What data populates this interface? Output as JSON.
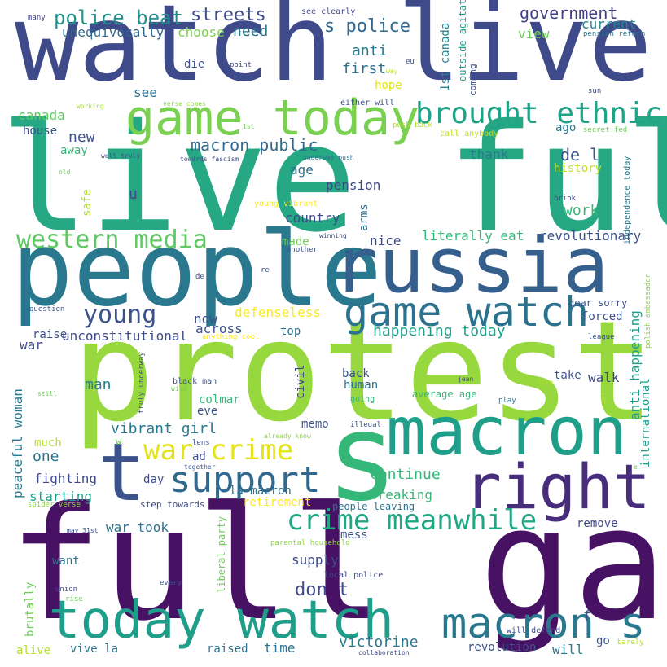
{
  "palette": {
    "dark_purple": "#471164",
    "indigo": "#3e4a89",
    "blue": "#31688e",
    "teal": "#26828e",
    "green_teal": "#1f9e89",
    "green": "#35b779",
    "light_green": "#6ece58",
    "lime": "#b5de2b",
    "yellow": "#fde725"
  },
  "words": [
    {
      "text": "watch live",
      "color": "#3e4a89"
    },
    {
      "text": "live full",
      "color": "#26a884"
    },
    {
      "text": "protest",
      "color": "#97d83f"
    },
    {
      "text": "full game",
      "color": "#471164"
    },
    {
      "text": "people",
      "color": "#2a788e"
    },
    {
      "text": "russia",
      "color": "#355f8d"
    },
    {
      "text": "macron",
      "color": "#1f9e89"
    },
    {
      "text": "s",
      "color": "#35b779"
    },
    {
      "text": "right",
      "color": "#472d7b"
    },
    {
      "text": "today watch",
      "color": "#1f9e89"
    },
    {
      "text": "game today",
      "color": "#7ad151"
    },
    {
      "text": "game watch",
      "color": "#2c728e"
    },
    {
      "text": "t",
      "color": "#3b528b"
    },
    {
      "text": "support",
      "color": "#31688e"
    },
    {
      "text": "macron s",
      "color": "#2a788e"
    },
    {
      "text": "brought ethnic",
      "color": "#20a386"
    },
    {
      "text": "war crime",
      "color": "#e4e419"
    },
    {
      "text": "crime meanwhile",
      "color": "#22a785"
    },
    {
      "text": "western media",
      "color": "#5ec962"
    },
    {
      "text": "young",
      "color": "#3b528b"
    },
    {
      "text": "police beat",
      "color": "#21918c"
    },
    {
      "text": "streets",
      "color": "#3e4a89"
    },
    {
      "text": "s police",
      "color": "#31688e"
    },
    {
      "text": "government",
      "color": "#433e85"
    },
    {
      "text": "unequivocally",
      "color": "#31688e"
    },
    {
      "text": "choose",
      "color": "#7ad151"
    },
    {
      "text": "need",
      "color": "#2c728e"
    },
    {
      "text": "current",
      "color": "#25848e"
    },
    {
      "text": "view",
      "color": "#6ece58"
    },
    {
      "text": "pension reform",
      "color": "#2a788e"
    },
    {
      "text": "many",
      "color": "#414487"
    },
    {
      "text": "see clearly",
      "color": "#404688"
    },
    {
      "text": "coming",
      "color": "#3b528b"
    },
    {
      "text": "outside agitator",
      "color": "#1f9e89"
    },
    {
      "text": "1st canada",
      "color": "#26828e"
    },
    {
      "text": "anti",
      "color": "#287c8e"
    },
    {
      "text": "first",
      "color": "#2c728e"
    },
    {
      "text": "eu",
      "color": "#3b528b"
    },
    {
      "text": "way",
      "color": "#b5de2b"
    },
    {
      "text": "die",
      "color": "#3b528b"
    },
    {
      "text": "point",
      "color": "#3e4989"
    },
    {
      "text": "data",
      "color": "#3b528b"
    },
    {
      "text": "hope",
      "color": "#e2e418"
    },
    {
      "text": "sun",
      "color": "#3e4a89"
    },
    {
      "text": "see",
      "color": "#2c728e"
    },
    {
      "text": "working",
      "color": "#a5db36"
    },
    {
      "text": "verse comes",
      "color": "#8ed645"
    },
    {
      "text": "either will",
      "color": "#3b528b"
    },
    {
      "text": "canada",
      "color": "#5ec962"
    },
    {
      "text": "house",
      "color": "#3b528b"
    },
    {
      "text": "new",
      "color": "#3b528b"
    },
    {
      "text": "1st",
      "color": "#6ece58"
    },
    {
      "text": "push back",
      "color": "#b5de2b"
    },
    {
      "text": "call anybody",
      "color": "#bddf26"
    },
    {
      "text": "secret fed",
      "color": "#6ece58"
    },
    {
      "text": "independence today",
      "color": "#2a788e"
    },
    {
      "text": "ago",
      "color": "#287c8e"
    },
    {
      "text": "macron public",
      "color": "#31688e"
    },
    {
      "text": "away",
      "color": "#35b779"
    },
    {
      "text": "well truly",
      "color": "#3b528b"
    },
    {
      "text": "underway push",
      "color": "#2c728e"
    },
    {
      "text": "towards fascism",
      "color": "#3e4a89"
    },
    {
      "text": "thank",
      "color": "#2a788e"
    },
    {
      "text": "de l",
      "color": "#3b528b"
    },
    {
      "text": "history",
      "color": "#bddf26"
    },
    {
      "text": "old",
      "color": "#6ece58"
    },
    {
      "text": "age",
      "color": "#2c728e"
    },
    {
      "text": "safe",
      "color": "#b5de2b"
    },
    {
      "text": "u",
      "color": "#3e4a89"
    },
    {
      "text": "pension",
      "color": "#3e4a89"
    },
    {
      "text": "young vibrant",
      "color": "#fde725"
    },
    {
      "text": "arms",
      "color": "#2c728e"
    },
    {
      "text": "brink",
      "color": "#3e4a89"
    },
    {
      "text": "work",
      "color": "#35b779"
    },
    {
      "text": "country",
      "color": "#3e4a89"
    },
    {
      "text": "winning",
      "color": "#3e4a89"
    },
    {
      "text": "literally eat",
      "color": "#35b779"
    },
    {
      "text": "revolutionary",
      "color": "#3b528b"
    },
    {
      "text": "made",
      "color": "#6ece58"
    },
    {
      "text": "nice",
      "color": "#3e4a89"
    },
    {
      "text": "another",
      "color": "#3b528b"
    },
    {
      "text": "anti happening",
      "color": "#1f9e89"
    },
    {
      "text": "polish ambassador",
      "color": "#8ed645"
    },
    {
      "text": "re",
      "color": "#3b528b"
    },
    {
      "text": "de",
      "color": "#3e4a89"
    },
    {
      "text": "now",
      "color": "#3b528b"
    },
    {
      "text": "defenseless",
      "color": "#fde725"
    },
    {
      "text": "across",
      "color": "#3b528b"
    },
    {
      "text": "question",
      "color": "#3b528b"
    },
    {
      "text": "dear sorry",
      "color": "#3b528b"
    },
    {
      "text": "forced",
      "color": "#3b528b"
    },
    {
      "text": "raise",
      "color": "#3b528b"
    },
    {
      "text": "unconstitutional",
      "color": "#3e4a89"
    },
    {
      "text": "anything cool",
      "color": "#fde725"
    },
    {
      "text": "top",
      "color": "#2c728e"
    },
    {
      "text": "happening today",
      "color": "#1f9e89"
    },
    {
      "text": "league",
      "color": "#3b528b"
    },
    {
      "text": "international",
      "color": "#1f9e89"
    },
    {
      "text": "war",
      "color": "#3e4a89"
    },
    {
      "text": "truly underway",
      "color": "#3e4a89"
    },
    {
      "text": "civil",
      "color": "#3e4a89"
    },
    {
      "text": "man",
      "color": "#287c8e"
    },
    {
      "text": "black man",
      "color": "#3b528b"
    },
    {
      "text": "wild",
      "color": "#6ece58"
    },
    {
      "text": "back",
      "color": "#3b528b"
    },
    {
      "text": "human",
      "color": "#2c728e"
    },
    {
      "text": "jean",
      "color": "#3e4a89"
    },
    {
      "text": "take",
      "color": "#3b528b"
    },
    {
      "text": "live",
      "color": "#b5de2b"
    },
    {
      "text": "walk",
      "color": "#3e4a89"
    },
    {
      "text": "still",
      "color": "#6ece58"
    },
    {
      "text": "peaceful woman",
      "color": "#2a788e"
    },
    {
      "text": "colmar",
      "color": "#35b779"
    },
    {
      "text": "going",
      "color": "#35b779"
    },
    {
      "text": "average age",
      "color": "#35b779"
    },
    {
      "text": "play",
      "color": "#2c728e"
    },
    {
      "text": "gas",
      "color": "#b5de2b"
    },
    {
      "text": "eve",
      "color": "#3b528b"
    },
    {
      "text": "memo",
      "color": "#3b528b"
    },
    {
      "text": "illegal",
      "color": "#3b528b"
    },
    {
      "text": "vibrant girl",
      "color": "#2a788e"
    },
    {
      "text": "already know",
      "color": "#8ed645"
    },
    {
      "text": "one",
      "color": "#2c728e"
    },
    {
      "text": "much",
      "color": "#b5de2b"
    },
    {
      "text": "w",
      "color": "#6ece58"
    },
    {
      "text": "lens",
      "color": "#3b528b"
    },
    {
      "text": "ad",
      "color": "#3e4a89"
    },
    {
      "text": "fighting",
      "color": "#3e4a89"
    },
    {
      "text": "day",
      "color": "#3e4a89"
    },
    {
      "text": "la macron",
      "color": "#2c728e"
    },
    {
      "text": "together",
      "color": "#3b528b"
    },
    {
      "text": "continue",
      "color": "#35b779"
    },
    {
      "text": "starting",
      "color": "#1f9e89"
    },
    {
      "text": "breaking",
      "color": "#35b779"
    },
    {
      "text": "spider verse",
      "color": "#8ed645"
    },
    {
      "text": "step towards",
      "color": "#3e4a89"
    },
    {
      "text": "retirement",
      "color": "#fde725"
    },
    {
      "text": "people leaving",
      "color": "#2c728e"
    },
    {
      "text": "war took",
      "color": "#2c728e"
    },
    {
      "text": "remove",
      "color": "#3e4a89"
    },
    {
      "text": "may 31st",
      "color": "#3b528b"
    },
    {
      "text": "mess",
      "color": "#3b528b"
    },
    {
      "text": "parental household",
      "color": "#8ed645"
    },
    {
      "text": "liberal party",
      "color": "#6ece58"
    },
    {
      "text": "want",
      "color": "#2c728e"
    },
    {
      "text": "supply",
      "color": "#3e4a89"
    },
    {
      "text": "local police",
      "color": "#3e4a89"
    },
    {
      "text": "every",
      "color": "#3b528b"
    },
    {
      "text": "don t",
      "color": "#3e4a89"
    },
    {
      "text": "union",
      "color": "#3e4a89"
    },
    {
      "text": "rise",
      "color": "#6ece58"
    },
    {
      "text": "brutally",
      "color": "#6ece58"
    },
    {
      "text": "will defend",
      "color": "#3e4a89"
    },
    {
      "text": "f",
      "color": "#3b528b"
    },
    {
      "text": "victorine",
      "color": "#2a788e"
    },
    {
      "text": "will",
      "color": "#2a788e"
    },
    {
      "text": "go",
      "color": "#3b528b"
    },
    {
      "text": "barely",
      "color": "#b5de2b"
    },
    {
      "text": "alive",
      "color": "#b5de2b"
    },
    {
      "text": "vive la",
      "color": "#2c728e"
    },
    {
      "text": "raised",
      "color": "#2c728e"
    },
    {
      "text": "time",
      "color": "#2c728e"
    },
    {
      "text": "collaboration",
      "color": "#3e4a89"
    },
    {
      "text": "revolution",
      "color": "#3b528b"
    },
    {
      "text": "e",
      "color": "#6ece58"
    }
  ]
}
